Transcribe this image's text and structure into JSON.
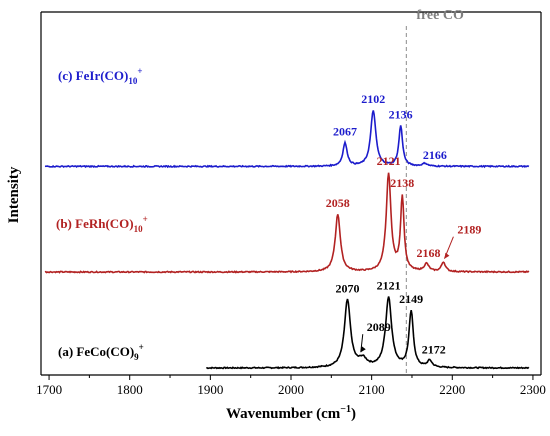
{
  "chart_data": {
    "type": "line",
    "xlabel": "Wavenumber (cm",
    "xlabel_superscript": "−1",
    "xlabel_suffix": ")",
    "ylabel": "Intensity",
    "xlim": [
      1690,
      2310
    ],
    "xticks": [
      1700,
      1800,
      1900,
      2000,
      2100,
      2200,
      2300
    ],
    "y_ticks_shown": false,
    "grid": false,
    "reference_line": {
      "x": 2143,
      "label": "free CO",
      "style": "dashed",
      "color": "#8c8c8c"
    },
    "series": [
      {
        "name_main": "(a) FeCo(CO)",
        "name_sub": "9",
        "name_sup": "+",
        "color": "#000000",
        "x_range": [
          1895,
          2295
        ],
        "baseline": 0.0,
        "peaks": [
          {
            "x": 2070,
            "height": 0.7,
            "width": 4.5
          },
          {
            "x": 2089,
            "height": 0.08,
            "width": 6
          },
          {
            "x": 2121,
            "height": 0.73,
            "width": 4.5
          },
          {
            "x": 2149,
            "height": 0.58,
            "width": 3.2
          },
          {
            "x": 2172,
            "height": 0.07,
            "width": 3.5
          }
        ],
        "peak_labels": [
          {
            "x": 2070,
            "text": "2070",
            "arrow": false
          },
          {
            "x": 2089,
            "text": "2089",
            "arrow": true
          },
          {
            "x": 2121,
            "text": "2121",
            "arrow": false
          },
          {
            "x": 2149,
            "text": "2149",
            "arrow": false
          },
          {
            "x": 2172,
            "text": "2172",
            "arrow": false
          }
        ]
      },
      {
        "name_main": "(b) FeRh(CO)",
        "name_sub": "10",
        "name_sup": "+",
        "color": "#b22222",
        "x_range": [
          1695,
          2295
        ],
        "baseline": 1.0,
        "peaks": [
          {
            "x": 2058,
            "height": 0.6,
            "width": 3.8
          },
          {
            "x": 2121,
            "height": 1.02,
            "width": 3.5
          },
          {
            "x": 2138,
            "height": 0.77,
            "width": 2.6
          },
          {
            "x": 2168,
            "height": 0.08,
            "width": 3.5
          },
          {
            "x": 2189,
            "height": 0.1,
            "width": 3.0
          }
        ],
        "peak_labels": [
          {
            "x": 2058,
            "text": "2058",
            "arrow": false
          },
          {
            "x": 2121,
            "text": "2121",
            "arrow": false
          },
          {
            "x": 2138,
            "text": "2138",
            "arrow": false
          },
          {
            "x": 2168,
            "text": "2168",
            "arrow": false
          },
          {
            "x": 2189,
            "text": "2189",
            "arrow": true
          }
        ]
      },
      {
        "name_main": "(c) FeIr(CO)",
        "name_sub": "10",
        "name_sup": "+",
        "color": "#1c1ccc",
        "x_range": [
          1695,
          2295
        ],
        "baseline": 2.1,
        "peaks": [
          {
            "x": 2067,
            "height": 0.24,
            "width": 3.2
          },
          {
            "x": 2102,
            "height": 0.58,
            "width": 3.8
          },
          {
            "x": 2136,
            "height": 0.42,
            "width": 2.8
          },
          {
            "x": 2166,
            "height": 0.03,
            "width": 3.5
          }
        ],
        "peak_labels": [
          {
            "x": 2067,
            "text": "2067",
            "arrow": false
          },
          {
            "x": 2102,
            "text": "2102",
            "arrow": false
          },
          {
            "x": 2136,
            "text": "2136",
            "arrow": false
          },
          {
            "x": 2166,
            "text": "2166",
            "arrow": false
          }
        ]
      }
    ]
  }
}
